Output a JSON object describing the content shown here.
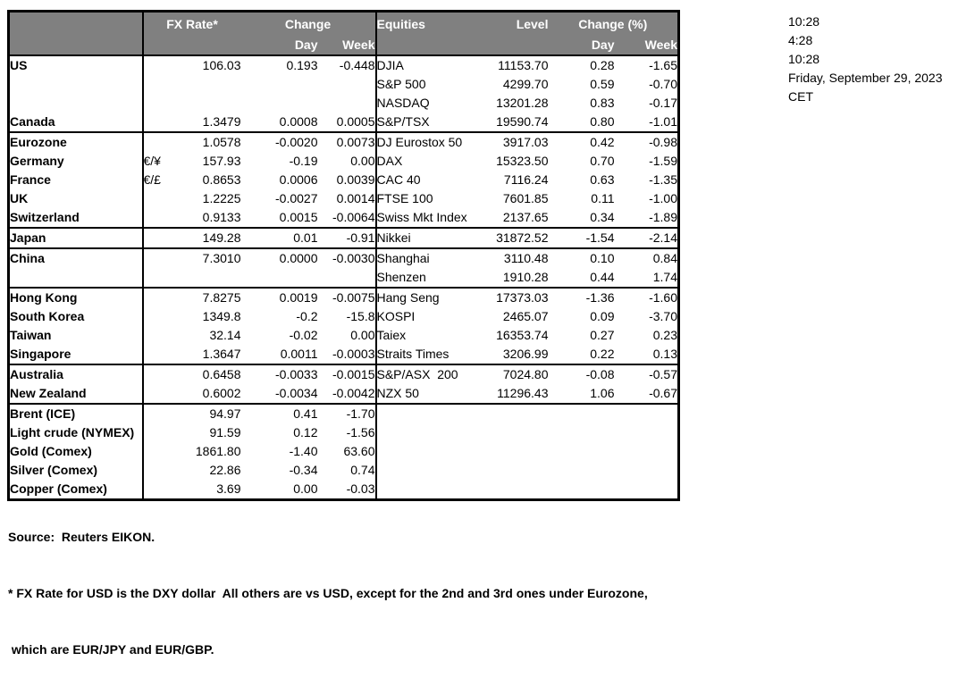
{
  "colors": {
    "header_bg": "#808080",
    "header_text": "#ffffff",
    "border": "#000000"
  },
  "header": {
    "fx_rate": "FX Rate*",
    "change": "Change",
    "day": "Day",
    "week": "Week",
    "equities": "Equities",
    "level": "Level",
    "change_pct": "Change (%)"
  },
  "timestamps": {
    "line1": "10:28",
    "line2": "4:28",
    "line3": "10:28",
    "date": "Friday, September 29, 2023",
    "timezone": "CET"
  },
  "footer": {
    "source": "Source:  Reuters EIKON.",
    "note1": "* FX Rate for USD is the DXY dollar  All others are vs USD, except for the 2nd and 3rd ones under Eurozone,",
    "note2": " which are EUR/JPY and EUR/GBP."
  },
  "sections": [
    {
      "rows": [
        {
          "label": "US",
          "indent": false,
          "pair": "",
          "fx": "106.03",
          "fx_day": "0.193",
          "fx_week": "-0.448",
          "equity": "DJIA",
          "level": "11153.70",
          "eq_day": "0.28",
          "eq_week": "-1.65"
        },
        {
          "label": "",
          "indent": false,
          "pair": "",
          "fx": "",
          "fx_day": "",
          "fx_week": "",
          "equity": "S&P 500",
          "level": "4299.70",
          "eq_day": "0.59",
          "eq_week": "-0.70"
        },
        {
          "label": "",
          "indent": false,
          "pair": "",
          "fx": "",
          "fx_day": "",
          "fx_week": "",
          "equity": "NASDAQ",
          "level": "13201.28",
          "eq_day": "0.83",
          "eq_week": "-0.17"
        },
        {
          "label": "Canada",
          "indent": false,
          "pair": "",
          "fx": "1.3479",
          "fx_day": "0.0008",
          "fx_week": "0.0005",
          "equity": "S&P/TSX",
          "level": "19590.74",
          "eq_day": "0.80",
          "eq_week": "-1.01"
        }
      ]
    },
    {
      "rows": [
        {
          "label": "Eurozone",
          "indent": false,
          "pair": "",
          "fx": "1.0578",
          "fx_day": "-0.0020",
          "fx_week": "0.0073",
          "equity": "DJ Eurostox 50",
          "level": "3917.03",
          "eq_day": "0.42",
          "eq_week": "-0.98"
        },
        {
          "label": "Germany",
          "indent": true,
          "pair": "€/¥",
          "fx": "157.93",
          "fx_day": "-0.19",
          "fx_week": "0.00",
          "equity": "DAX",
          "level": "15323.50",
          "eq_day": "0.70",
          "eq_week": "-1.59"
        },
        {
          "label": "France",
          "indent": true,
          "pair": "€/£",
          "fx": "0.8653",
          "fx_day": "0.0006",
          "fx_week": "0.0039",
          "equity": "CAC 40",
          "level": "7116.24",
          "eq_day": "0.63",
          "eq_week": "-1.35"
        },
        {
          "label": "UK",
          "indent": false,
          "pair": "",
          "fx": "1.2225",
          "fx_day": "-0.0027",
          "fx_week": "0.0014",
          "equity": "FTSE 100",
          "level": "7601.85",
          "eq_day": "0.11",
          "eq_week": "-1.00"
        },
        {
          "label": "Switzerland",
          "indent": false,
          "pair": "",
          "fx": "0.9133",
          "fx_day": "0.0015",
          "fx_week": "-0.0064",
          "equity": "Swiss Mkt Index",
          "level": "2137.65",
          "eq_day": "0.34",
          "eq_week": "-1.89"
        }
      ]
    },
    {
      "rows": [
        {
          "label": "Japan",
          "indent": false,
          "pair": "",
          "fx": "149.28",
          "fx_day": "0.01",
          "fx_week": "-0.91",
          "equity": "Nikkei",
          "level": "31872.52",
          "eq_day": "-1.54",
          "eq_week": "-2.14"
        }
      ]
    },
    {
      "rows": [
        {
          "label": "China",
          "indent": false,
          "pair": "",
          "fx": "7.3010",
          "fx_day": "0.0000",
          "fx_week": "-0.0030",
          "equity": "Shanghai",
          "level": "3110.48",
          "eq_day": "0.10",
          "eq_week": "0.84"
        },
        {
          "label": "",
          "indent": false,
          "pair": "",
          "fx": "",
          "fx_day": "",
          "fx_week": "",
          "equity": "Shenzen",
          "level": "1910.28",
          "eq_day": "0.44",
          "eq_week": "1.74"
        }
      ]
    },
    {
      "rows": [
        {
          "label": "Hong Kong",
          "indent": false,
          "pair": "",
          "fx": "7.8275",
          "fx_day": "0.0019",
          "fx_week": "-0.0075",
          "equity": "Hang Seng",
          "level": "17373.03",
          "eq_day": "-1.36",
          "eq_week": "-1.60"
        },
        {
          "label": "South Korea",
          "indent": false,
          "pair": "",
          "fx": "1349.8",
          "fx_day": "-0.2",
          "fx_week": "-15.8",
          "equity": "KOSPI",
          "level": "2465.07",
          "eq_day": "0.09",
          "eq_week": "-3.70"
        },
        {
          "label": "Taiwan",
          "indent": false,
          "pair": "",
          "fx": "32.14",
          "fx_day": "-0.02",
          "fx_week": "0.00",
          "equity": "Taiex",
          "level": "16353.74",
          "eq_day": "0.27",
          "eq_week": "0.23"
        },
        {
          "label": "Singapore",
          "indent": false,
          "pair": "",
          "fx": "1.3647",
          "fx_day": "0.0011",
          "fx_week": "-0.0003",
          "equity": "Straits Times",
          "level": "3206.99",
          "eq_day": "0.22",
          "eq_week": "0.13"
        }
      ]
    },
    {
      "rows": [
        {
          "label": "Australia",
          "indent": false,
          "pair": "",
          "fx": "0.6458",
          "fx_day": "-0.0033",
          "fx_week": "-0.0015",
          "equity": "S&P/ASX  200",
          "level": "7024.80",
          "eq_day": "-0.08",
          "eq_week": "-0.57"
        },
        {
          "label": "New Zealand",
          "indent": false,
          "pair": "",
          "fx": "0.6002",
          "fx_day": "-0.0034",
          "fx_week": "-0.0042",
          "equity": "NZX 50",
          "level": "11296.43",
          "eq_day": "1.06",
          "eq_week": "-0.67"
        }
      ]
    },
    {
      "rows": [
        {
          "label": "Brent (ICE)",
          "indent": false,
          "pair": "",
          "fx": "94.97",
          "fx_day": "0.41",
          "fx_week": "-1.70",
          "equity": "",
          "level": "",
          "eq_day": "",
          "eq_week": ""
        },
        {
          "label": "Light crude (NYMEX)",
          "indent": false,
          "pair": "",
          "fx": "91.59",
          "fx_day": "0.12",
          "fx_week": "-1.56",
          "equity": "",
          "level": "",
          "eq_day": "",
          "eq_week": ""
        },
        {
          "label": "Gold (Comex)",
          "indent": false,
          "pair": "",
          "fx": "1861.80",
          "fx_day": "-1.40",
          "fx_week": "63.60",
          "equity": "",
          "level": "",
          "eq_day": "",
          "eq_week": ""
        },
        {
          "label": "Silver (Comex)",
          "indent": false,
          "pair": "",
          "fx": "22.86",
          "fx_day": "-0.34",
          "fx_week": "0.74",
          "equity": "",
          "level": "",
          "eq_day": "",
          "eq_week": ""
        },
        {
          "label": "Copper (Comex)",
          "indent": false,
          "pair": "",
          "fx": "3.69",
          "fx_day": "0.00",
          "fx_week": "-0.03",
          "equity": "",
          "level": "",
          "eq_day": "",
          "eq_week": ""
        }
      ]
    }
  ]
}
